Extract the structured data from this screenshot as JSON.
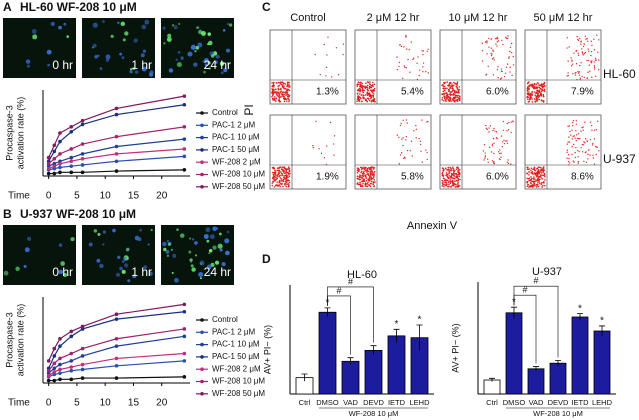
{
  "panel_labels": [
    "A",
    "B",
    "C",
    "D"
  ],
  "microscopy": [
    {
      "title": "HL-60 WF-208 10 μM",
      "times": [
        "0 hr",
        "1 hr",
        "24 hr"
      ]
    },
    {
      "title": "U-937 WF-208 10 μM",
      "times": [
        "0 hr",
        "1 hr",
        "24 hr"
      ]
    }
  ],
  "flow": {
    "columns": [
      "Control",
      "2 μM 12 hr",
      "10 μM 12 hr",
      "50 μM 12 hr"
    ],
    "rows": [
      {
        "name": "HL-60",
        "percents": [
          "1.3%",
          "5.4%",
          "6.0%",
          "7.9%"
        ]
      },
      {
        "name": "U-937",
        "percents": [
          "1.9%",
          "5.8%",
          "6.0%",
          "8.6%"
        ]
      }
    ],
    "ylabel": "PI",
    "xlabel": "Annexin V"
  },
  "chart_data": [
    {
      "type": "line",
      "ylabel": [
        "Procaspase-3",
        "activation rate (%)"
      ],
      "xlabel": "Time",
      "x": [
        0,
        1,
        2,
        4,
        6,
        12,
        24
      ],
      "xlim": [
        -1,
        25
      ],
      "xticks": [
        0,
        5,
        10,
        15,
        20
      ],
      "ylim": [
        0,
        70
      ],
      "legend": "right",
      "series": [
        {
          "name": "Control",
          "color": "#111111",
          "values": [
            2,
            2,
            3,
            3,
            3,
            4,
            5
          ]
        },
        {
          "name": "PAC-1 2 μM",
          "color": "#2b4fb0",
          "values": [
            5,
            6,
            7,
            8,
            9,
            12,
            16
          ]
        },
        {
          "name": "PAC-1 10 μM",
          "color": "#1f3f9a",
          "values": [
            8,
            10,
            12,
            15,
            18,
            24,
            30
          ]
        },
        {
          "name": "PAC-1 50 μM",
          "color": "#1a2f80",
          "values": [
            12,
            20,
            28,
            36,
            42,
            50,
            58
          ]
        },
        {
          "name": "WF-208 2 μM",
          "color": "#c0307a",
          "values": [
            6,
            8,
            10,
            12,
            14,
            18,
            22
          ]
        },
        {
          "name": "WF-208 10 μM",
          "color": "#a0246a",
          "values": [
            10,
            14,
            18,
            22,
            26,
            32,
            40
          ]
        },
        {
          "name": "WF-208 50 μM",
          "color": "#801a5a",
          "values": [
            15,
            25,
            35,
            40,
            45,
            55,
            65
          ]
        }
      ]
    },
    {
      "type": "line",
      "ylabel": [
        "Procaspase-3",
        "activation rate (%)"
      ],
      "xlabel": "Time",
      "x": [
        0,
        1,
        2,
        4,
        6,
        12,
        24
      ],
      "xlim": [
        -1,
        25
      ],
      "xticks": [
        0,
        5,
        10,
        15,
        20
      ],
      "ylim": [
        0,
        70
      ],
      "legend": "right",
      "series": [
        {
          "name": "Control",
          "color": "#111111",
          "values": [
            2,
            2,
            3,
            3,
            4,
            4,
            5
          ]
        },
        {
          "name": "PAC-1 2 μM",
          "color": "#2b4fb0",
          "values": [
            5,
            7,
            8,
            10,
            11,
            14,
            18
          ]
        },
        {
          "name": "PAC-1 10 μM",
          "color": "#1f3f9a",
          "values": [
            8,
            12,
            15,
            18,
            22,
            30,
            38
          ]
        },
        {
          "name": "PAC-1 50 μM",
          "color": "#1a2f80",
          "values": [
            12,
            22,
            30,
            38,
            44,
            52,
            58
          ]
        },
        {
          "name": "WF-208 2 μM",
          "color": "#c0307a",
          "values": [
            6,
            9,
            11,
            13,
            15,
            20,
            24
          ]
        },
        {
          "name": "WF-208 10 μM",
          "color": "#a0246a",
          "values": [
            10,
            16,
            20,
            24,
            28,
            36,
            44
          ]
        },
        {
          "name": "WF-208 50 μM",
          "color": "#801a5a",
          "values": [
            18,
            28,
            36,
            42,
            46,
            56,
            64
          ]
        }
      ]
    },
    {
      "type": "bar",
      "title": "HL-60",
      "ylabel": "AV+ PI− (%)",
      "categories": [
        "Ctrl",
        "DMSO",
        "VAD",
        "DEVD",
        "IETD",
        "LEHD"
      ],
      "values": [
        4.5,
        22.5,
        9,
        12,
        16,
        15.5
      ],
      "errors": [
        1,
        1.2,
        1,
        1.3,
        1.8,
        3.5
      ],
      "colors": [
        "#ffffff",
        "#1c1c9e",
        "#1c1c9e",
        "#1c1c9e",
        "#1c1c9e",
        "#1c1c9e"
      ],
      "ylim": [
        0,
        30
      ],
      "group_label": "WF-208 10 μM",
      "significance": [
        null,
        "*",
        null,
        null,
        "*",
        "*"
      ],
      "comparisons": [
        {
          "from": 1,
          "to": 2,
          "label": "#"
        },
        {
          "from": 1,
          "to": 3,
          "label": "#"
        }
      ]
    },
    {
      "type": "bar",
      "title": "U-937",
      "ylabel": "AV+ PI− (%)",
      "categories": [
        "Ctrl",
        "DMSO",
        "VAD",
        "DEVD",
        "IETD",
        "LEHD"
      ],
      "values": [
        5,
        29,
        9,
        11,
        27.5,
        22.5
      ],
      "errors": [
        0.6,
        2,
        0.8,
        1,
        1.2,
        1.8
      ],
      "colors": [
        "#ffffff",
        "#1c1c9e",
        "#1c1c9e",
        "#1c1c9e",
        "#1c1c9e",
        "#1c1c9e"
      ],
      "ylim": [
        0,
        40
      ],
      "group_label": "WF-208 10 μM",
      "significance": [
        null,
        "*",
        null,
        null,
        "*",
        "*"
      ],
      "comparisons": [
        {
          "from": 1,
          "to": 2,
          "label": "#"
        },
        {
          "from": 1,
          "to": 3,
          "label": "#"
        }
      ]
    }
  ]
}
